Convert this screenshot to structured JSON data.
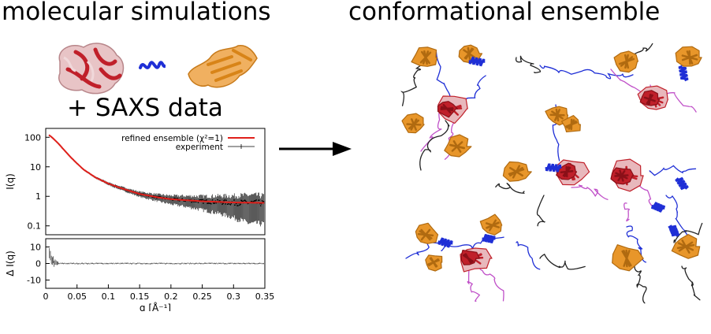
{
  "titles": {
    "left": "molecular simulations",
    "right": "conformational ensemble",
    "plus": "+ SAXS data"
  },
  "colors": {
    "refined_line": "#e0201b",
    "experiment": "#000000",
    "domain_red": "#c0202a",
    "domain_pink": "#e8b8bc",
    "domain_orange": "#e8962a",
    "linker_blue": "#1f2fd6",
    "linker_magenta": "#c050c8",
    "tail_black": "#222222"
  },
  "icons": [
    "red-protein-domain-icon",
    "blue-helix-icon",
    "orange-protein-domain-icon",
    "right-arrow-icon"
  ],
  "chart_data": [
    {
      "type": "line",
      "panel": "top",
      "xlim": [
        0,
        0.35
      ],
      "ylim": [
        0.05,
        200
      ],
      "log_y": true,
      "ylabel": "I(q)",
      "yticks": [
        "100",
        "10",
        "1",
        "0.1"
      ],
      "legend_placement": "top-right",
      "series": [
        {
          "name": "refined ensemble (χ²=1)",
          "style": "line",
          "x": [
            0.005,
            0.01,
            0.02,
            0.03,
            0.04,
            0.05,
            0.06,
            0.08,
            0.1,
            0.12,
            0.15,
            0.18,
            0.2,
            0.25,
            0.3,
            0.35
          ],
          "y": [
            120,
            100,
            62,
            36,
            21,
            13,
            8.2,
            4.3,
            2.7,
            1.9,
            1.2,
            0.92,
            0.8,
            0.68,
            0.62,
            0.6
          ]
        },
        {
          "name": "experiment",
          "style": "points-with-errorbars",
          "x": [
            0.005,
            0.01,
            0.02,
            0.03,
            0.04,
            0.05,
            0.06,
            0.08,
            0.1,
            0.12,
            0.15,
            0.18,
            0.2,
            0.25,
            0.3,
            0.35
          ],
          "y": [
            118,
            101,
            61,
            37,
            21,
            13,
            8.1,
            4.4,
            2.7,
            1.9,
            1.2,
            0.9,
            0.8,
            0.68,
            0.62,
            0.6
          ]
        }
      ]
    },
    {
      "type": "line",
      "panel": "bottom",
      "xlim": [
        0,
        0.35
      ],
      "ylim": [
        -15,
        15
      ],
      "ylabel": "Δ I(q)",
      "yticks": [
        "10",
        "0",
        "-10"
      ],
      "xlabel": "q [Å⁻¹]",
      "xticks": [
        "0",
        "0.05",
        "0.1",
        "0.15",
        "0.2",
        "0.25",
        "0.3",
        "0.35"
      ],
      "series": [
        {
          "style": "residuals",
          "x": [
            0.005,
            0.01,
            0.02,
            0.05,
            0.1,
            0.2,
            0.35
          ],
          "y": [
            12,
            4,
            1,
            0.2,
            0,
            0,
            0
          ]
        }
      ]
    }
  ]
}
